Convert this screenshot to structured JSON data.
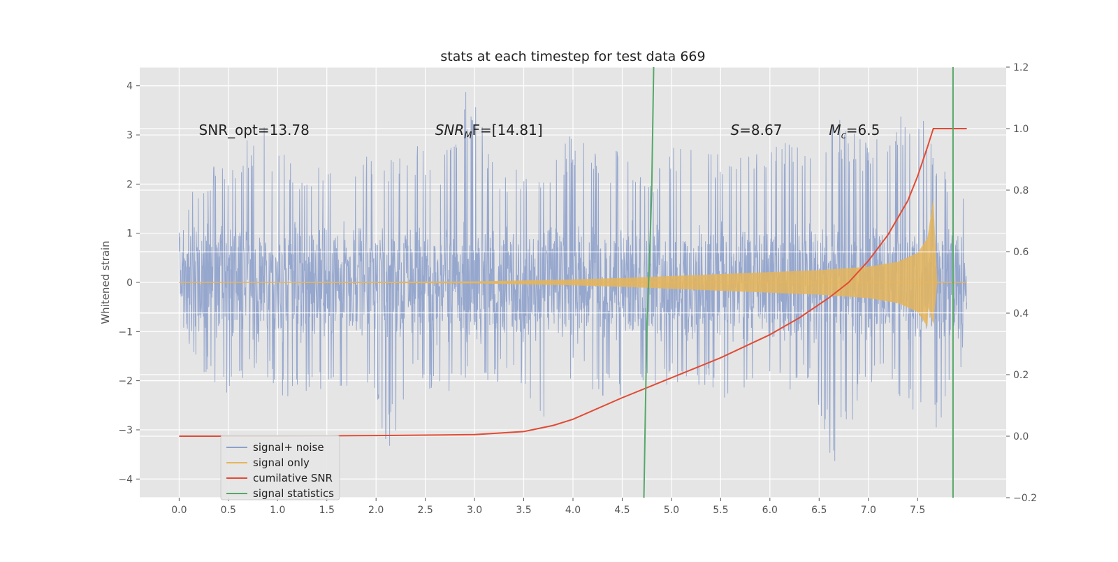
{
  "chart_data": {
    "type": "line",
    "title": "stats at each timestep for test data 669",
    "ylabel": "Whitened strain",
    "xlim": [
      -0.4,
      8.4
    ],
    "ylim": [
      -4.38,
      4.38
    ],
    "y2lim": [
      -0.2,
      1.2
    ],
    "grid": true,
    "legend_position": "lower-left",
    "x_ticks": [
      "0.0",
      "0.5",
      "1.0",
      "1.5",
      "2.0",
      "2.5",
      "3.0",
      "3.5",
      "4.0",
      "4.5",
      "5.0",
      "5.5",
      "6.0",
      "6.5",
      "7.0",
      "7.5"
    ],
    "y_ticks": [
      "4",
      "3",
      "2",
      "1",
      "0",
      "−1",
      "−2",
      "−3",
      "−4"
    ],
    "y2_ticks": [
      "1.2",
      "1.0",
      "0.8",
      "0.6",
      "0.4",
      "0.2",
      "0.0",
      "−0.2"
    ],
    "annotations": [
      {
        "text": "SNR_opt=13.78",
        "x": 0.2,
        "y": 3.1
      },
      {
        "text": "SNR",
        "sub": "M",
        "tail": "F=[14.81]",
        "x": 2.6,
        "y": 3.1
      },
      {
        "text": "S",
        "tail": "=8.67",
        "x": 5.6,
        "y": 3.1
      },
      {
        "text": "M",
        "sub": "c",
        "tail": "=6.5",
        "x": 6.6,
        "y": 3.1
      }
    ],
    "series": [
      {
        "name": "signal+ noise",
        "color": "#8da0cb",
        "x_range": [
          0.0,
          8.0
        ],
        "envelope_ymin": [
          -1.2,
          -1.9,
          -2.5,
          -1.9,
          -2.4,
          -2.2,
          -2.5,
          -1.9,
          -3.4,
          -2.0,
          -2.3,
          -2.1,
          -2.0,
          -2.2,
          -2.9,
          -2.0,
          -2.3,
          -2.4,
          -2.1,
          -2.2,
          -2.1,
          -2.5,
          -2.0,
          -2.3,
          -2.0,
          -4.0,
          -2.3,
          -2.0,
          -2.8,
          -3.1,
          -1.5
        ],
        "envelope_ymax": [
          1.5,
          2.4,
          2.5,
          3.3,
          2.7,
          2.4,
          2.5,
          2.6,
          2.7,
          2.9,
          2.6,
          4.0,
          2.6,
          2.3,
          2.4,
          3.1,
          2.6,
          2.8,
          2.3,
          3.0,
          2.9,
          2.5,
          2.7,
          3.1,
          2.6,
          3.4,
          2.9,
          3.0,
          3.8,
          2.6,
          1.6
        ],
        "core_band": [
          -0.62,
          0.62
        ]
      },
      {
        "name": "signal only",
        "color": "#e5b55b",
        "x": [
          0.0,
          3.0,
          4.0,
          4.5,
          5.0,
          5.5,
          6.0,
          6.5,
          7.0,
          7.3,
          7.5,
          7.6,
          7.66,
          7.7
        ],
        "amplitude": [
          0.0,
          0.02,
          0.06,
          0.09,
          0.13,
          0.17,
          0.21,
          0.25,
          0.32,
          0.42,
          0.6,
          0.9,
          1.7,
          0.0
        ]
      },
      {
        "name": "cumilative SNR",
        "color": "#e24a33",
        "axis": "right",
        "x": [
          0.0,
          1.0,
          2.0,
          3.0,
          3.5,
          3.8,
          4.0,
          4.5,
          5.0,
          5.5,
          6.0,
          6.3,
          6.6,
          6.8,
          7.0,
          7.2,
          7.4,
          7.5,
          7.6,
          7.66,
          8.0
        ],
        "y": [
          0.0,
          0.0,
          0.002,
          0.005,
          0.015,
          0.035,
          0.055,
          0.125,
          0.19,
          0.255,
          0.33,
          0.385,
          0.45,
          0.5,
          0.57,
          0.655,
          0.765,
          0.845,
          0.94,
          1.0,
          1.0
        ]
      },
      {
        "name": "signal statistics",
        "color": "#55a868",
        "axis": "right",
        "x": [
          4.72,
          4.75,
          4.78,
          4.8,
          4.82,
          4.84,
          4.86,
          4.88,
          4.9,
          4.92,
          4.94,
          4.96,
          4.98,
          5.0,
          5.02,
          5.04,
          5.06,
          5.08,
          5.1,
          5.12,
          5.14,
          5.16,
          5.18,
          5.2,
          5.22,
          5.24,
          5.26,
          5.28,
          5.3,
          5.32,
          5.34,
          5.36,
          5.38,
          5.4,
          5.42,
          5.44,
          5.46,
          5.48,
          5.5,
          5.52,
          5.54,
          5.56,
          5.58,
          5.6,
          5.62,
          5.64,
          5.66,
          5.68,
          5.7,
          5.72,
          5.74,
          5.76,
          5.78,
          5.8,
          5.82,
          5.84,
          5.86,
          5.88,
          5.9,
          5.92,
          5.94,
          5.96,
          5.98,
          6.0,
          6.02,
          6.04,
          6.06,
          6.08,
          6.1,
          6.12,
          6.14,
          6.16,
          6.18,
          6.2,
          6.22,
          6.24,
          6.26,
          6.28,
          6.3,
          6.32,
          6.34,
          6.36,
          6.38,
          6.4,
          6.42,
          6.44,
          6.46,
          6.48,
          6.5,
          6.52,
          6.54,
          6.56,
          6.58,
          6.6,
          6.62,
          6.64,
          6.66,
          6.68,
          6.7,
          6.72,
          6.74,
          6.76,
          6.78,
          6.8,
          6.82,
          6.84,
          6.86,
          6.88,
          6.9,
          6.92,
          6.94,
          6.96,
          6.98,
          7.0,
          7.02,
          7.04,
          7.06,
          7.08,
          7.1,
          7.12,
          7.14,
          7.16,
          7.18,
          7.2,
          7.22,
          7.24,
          7.26,
          7.28,
          7.3,
          7.32,
          7.34,
          7.36,
          7.38,
          7.4,
          7.42,
          7.44,
          7.46,
          7.48,
          7.5,
          7.52,
          7.54,
          7.56,
          7.58,
          7.6,
          7.62,
          7.64,
          7.66,
          7.68,
          7.7,
          7.72,
          7.74,
          7.76,
          7.78,
          7.8,
          7.82,
          7.84,
          7.86
        ],
        "segments": [
          {
            "x": [
              4.72,
              4.75,
              4.78,
              4.8,
              4.82
            ],
            "y": [
              -0.2,
              0.35,
              0.6,
              0.8,
              1.2
            ]
          },
          {
            "x": [
              7.86,
              7.86
            ],
            "y": [
              -0.2,
              1.2
            ]
          }
        ]
      }
    ]
  }
}
